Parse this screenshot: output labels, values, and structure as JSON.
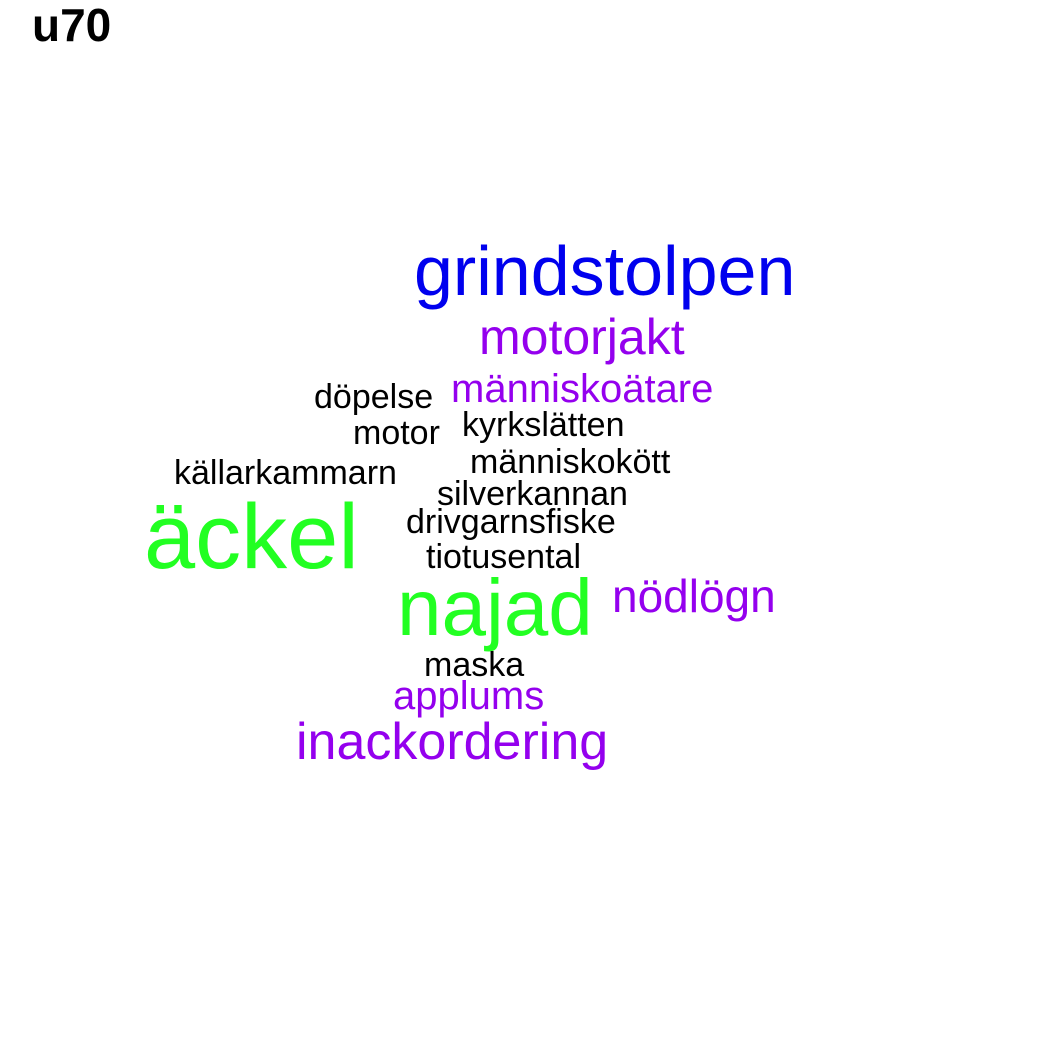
{
  "title": "u70",
  "colors": {
    "blue": "#0000ee",
    "purple": "#9400ee",
    "green": "#22ff22",
    "black": "#000000"
  },
  "words": {
    "grindstolpen": "grindstolpen",
    "motorjakt": "motorjakt",
    "manniskoatare": "människoätare",
    "dopelse": "döpelse",
    "kyrkslatten": "kyrkslätten",
    "motor": "motor",
    "manniskokott": "människokött",
    "kallarkammarn": "källarkammarn",
    "silverkannan": "silverkannan",
    "ackel": "äckel",
    "drivgarnsfiske": "drivgarnsfiske",
    "tiotusental": "tiotusental",
    "najad": "najad",
    "nodlogn": "nödlögn",
    "maska": "maska",
    "applums": "applums",
    "inackordering": "inackordering"
  }
}
